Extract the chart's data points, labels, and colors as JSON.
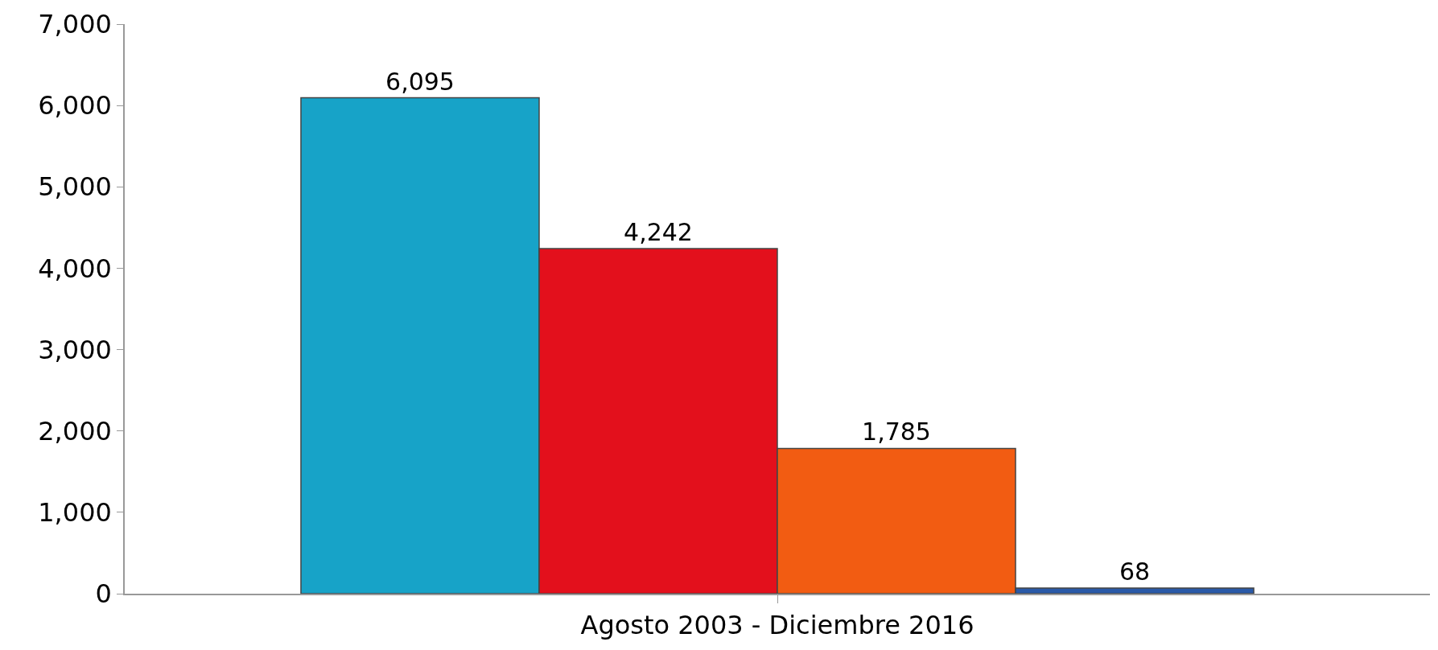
{
  "chart_data": {
    "type": "bar",
    "categories": [
      "Agosto 2003 - Diciembre 2016"
    ],
    "series": [
      {
        "color": "#17a3c8",
        "values": [
          6095
        ],
        "value_labels": [
          "6,095"
        ]
      },
      {
        "color": "#e3101c",
        "values": [
          4242
        ],
        "value_labels": [
          "4,242"
        ]
      },
      {
        "color": "#f25c12",
        "values": [
          1785
        ],
        "value_labels": [
          "1,785"
        ]
      },
      {
        "color": "#2a5aa8",
        "values": [
          68
        ],
        "value_labels": [
          "68"
        ]
      }
    ],
    "ylim": [
      0,
      7000
    ],
    "yticks": [
      {
        "value": 0,
        "label": "0"
      },
      {
        "value": 1000,
        "label": "1,000"
      },
      {
        "value": 2000,
        "label": "2,000"
      },
      {
        "value": 3000,
        "label": "3,000"
      },
      {
        "value": 4000,
        "label": "4,000"
      },
      {
        "value": 5000,
        "label": "5,000"
      },
      {
        "value": 6000,
        "label": "6,000"
      },
      {
        "value": 7000,
        "label": "7,000"
      }
    ],
    "grid": false
  }
}
